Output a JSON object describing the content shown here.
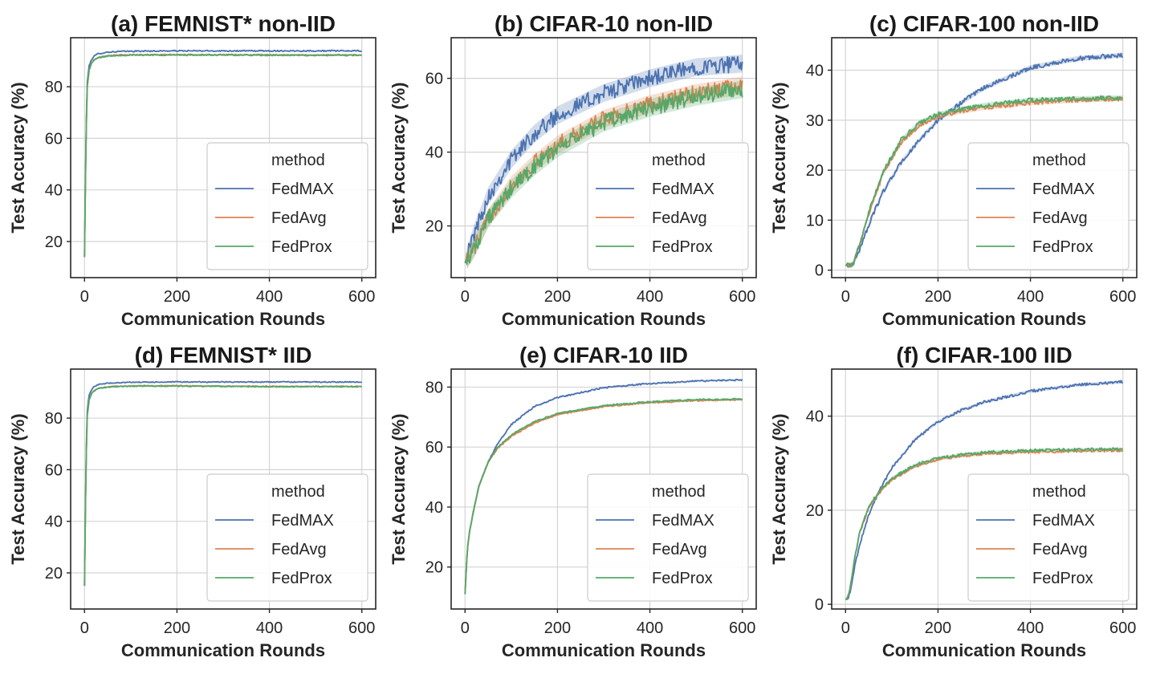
{
  "figure": {
    "colors": {
      "FedMAX": "#4c72b0",
      "FedAvg": "#dd8452",
      "FedProx": "#55a868"
    }
  },
  "chart_data": [
    {
      "type": "line",
      "title": "(a) FEMNIST* non-IID",
      "xlabel": "Communication Rounds",
      "ylabel": "Test Accuracy (%)",
      "xlim": [
        -30,
        630
      ],
      "ylim": [
        6,
        99
      ],
      "xticks": [
        0,
        200,
        400,
        600
      ],
      "yticks": [
        20,
        40,
        60,
        80
      ],
      "legend": {
        "title": "method",
        "placement": "bottom-right"
      },
      "noise": 0.25,
      "series": [
        {
          "name": "FedMAX",
          "x": [
            0,
            3,
            6,
            10,
            15,
            20,
            30,
            50,
            80,
            120,
            200,
            300,
            400,
            500,
            600
          ],
          "y": [
            14,
            60,
            82,
            88,
            90.5,
            91.8,
            92.8,
            93.4,
            93.7,
            93.8,
            93.9,
            93.9,
            93.9,
            93.9,
            93.9
          ]
        },
        {
          "name": "FedAvg",
          "x": [
            0,
            3,
            6,
            10,
            15,
            20,
            30,
            50,
            80,
            120,
            200,
            300,
            400,
            500,
            600
          ],
          "y": [
            14,
            58,
            80,
            86.5,
            89,
            90.3,
            91.4,
            92,
            92.3,
            92.4,
            92.4,
            92.4,
            92.3,
            92.3,
            92.3
          ]
        },
        {
          "name": "FedProx",
          "x": [
            0,
            3,
            6,
            10,
            15,
            20,
            30,
            50,
            80,
            120,
            200,
            300,
            400,
            500,
            600
          ],
          "y": [
            14,
            58,
            80,
            86.5,
            89,
            90.2,
            91.3,
            91.9,
            92.2,
            92.3,
            92.3,
            92.3,
            92.2,
            92.2,
            92.2
          ]
        }
      ]
    },
    {
      "type": "line",
      "title": "(b) CIFAR-10 non-IID",
      "xlabel": "Communication Rounds",
      "ylabel": "Test Accuracy (%)",
      "xlim": [
        -30,
        630
      ],
      "ylim": [
        6,
        71
      ],
      "xticks": [
        0,
        200,
        400,
        600
      ],
      "yticks": [
        20,
        40,
        60
      ],
      "legend": {
        "title": "method",
        "placement": "bottom-right"
      },
      "noise": 2.2,
      "series": [
        {
          "name": "FedMAX",
          "x": [
            0,
            20,
            50,
            100,
            150,
            200,
            300,
            400,
            500,
            600
          ],
          "y": [
            10,
            18,
            28,
            38,
            45,
            50,
            56,
            60,
            63,
            64
          ]
        },
        {
          "name": "FedAvg",
          "x": [
            0,
            20,
            50,
            100,
            150,
            200,
            300,
            400,
            500,
            600
          ],
          "y": [
            10,
            14,
            22,
            31,
            37,
            42,
            49,
            53,
            56,
            58
          ]
        },
        {
          "name": "FedProx",
          "x": [
            0,
            20,
            50,
            100,
            150,
            200,
            300,
            400,
            500,
            600
          ],
          "y": [
            10,
            14,
            22,
            30,
            36,
            41,
            48,
            52,
            55,
            57
          ]
        }
      ]
    },
    {
      "type": "line",
      "title": "(c) CIFAR-100 non-IID",
      "xlabel": "Communication Rounds",
      "ylabel": "Test Accuracy (%)",
      "xlim": [
        -30,
        630
      ],
      "ylim": [
        -1.5,
        46.5
      ],
      "xticks": [
        0,
        200,
        400,
        600
      ],
      "yticks": [
        0,
        10,
        20,
        30,
        40
      ],
      "legend": {
        "title": "method",
        "placement": "bottom-right"
      },
      "noise": 0.45,
      "series": [
        {
          "name": "FedMAX",
          "x": [
            0,
            15,
            30,
            50,
            80,
            120,
            160,
            200,
            250,
            300,
            400,
            500,
            600
          ],
          "y": [
            1,
            1,
            4,
            9,
            15.5,
            21.5,
            26,
            30,
            33.5,
            36.5,
            40.5,
            42.3,
            43
          ]
        },
        {
          "name": "FedAvg",
          "x": [
            0,
            15,
            30,
            50,
            80,
            120,
            160,
            200,
            250,
            300,
            400,
            500,
            600
          ],
          "y": [
            1,
            1,
            5,
            11,
            19,
            25.5,
            29,
            30.8,
            31.8,
            32.5,
            33.5,
            34,
            34.3
          ]
        },
        {
          "name": "FedProx",
          "x": [
            0,
            15,
            30,
            50,
            80,
            120,
            160,
            200,
            250,
            300,
            400,
            500,
            600
          ],
          "y": [
            1,
            1,
            5,
            11.5,
            19.5,
            26,
            29.5,
            31.2,
            32.2,
            33,
            34,
            34.3,
            34.5
          ]
        }
      ]
    },
    {
      "type": "line",
      "title": "(d) FEMNIST* IID",
      "xlabel": "Communication Rounds",
      "ylabel": "Test Accuracy (%)",
      "xlim": [
        -30,
        630
      ],
      "ylim": [
        6,
        99
      ],
      "xticks": [
        0,
        200,
        400,
        600
      ],
      "yticks": [
        20,
        40,
        60,
        80
      ],
      "legend": {
        "title": "method",
        "placement": "bottom-right"
      },
      "noise": 0.2,
      "series": [
        {
          "name": "FedMAX",
          "x": [
            0,
            3,
            6,
            10,
            15,
            20,
            30,
            50,
            80,
            120,
            200,
            300,
            400,
            500,
            600
          ],
          "y": [
            15,
            62,
            83,
            89,
            91,
            92.2,
            93,
            93.5,
            93.8,
            93.9,
            94,
            94,
            94,
            94,
            94
          ]
        },
        {
          "name": "FedAvg",
          "x": [
            0,
            3,
            6,
            10,
            15,
            20,
            30,
            50,
            80,
            120,
            200,
            300,
            400,
            500,
            600
          ],
          "y": [
            15,
            60,
            81,
            87,
            89.5,
            90.6,
            91.6,
            92.1,
            92.4,
            92.5,
            92.5,
            92.4,
            92.3,
            92.3,
            92.3
          ]
        },
        {
          "name": "FedProx",
          "x": [
            0,
            3,
            6,
            10,
            15,
            20,
            30,
            50,
            80,
            120,
            200,
            300,
            400,
            500,
            600
          ],
          "y": [
            15,
            60,
            81,
            87,
            89.4,
            90.5,
            91.5,
            92,
            92.3,
            92.4,
            92.4,
            92.3,
            92.2,
            92.2,
            92.2
          ]
        }
      ]
    },
    {
      "type": "line",
      "title": "(e) CIFAR-10 IID",
      "xlabel": "Communication Rounds",
      "ylabel": "Test Accuracy (%)",
      "xlim": [
        -30,
        630
      ],
      "ylim": [
        6,
        86
      ],
      "xticks": [
        0,
        200,
        400,
        600
      ],
      "yticks": [
        20,
        40,
        60,
        80
      ],
      "legend": {
        "title": "method",
        "placement": "bottom-right"
      },
      "noise": 0.25,
      "series": [
        {
          "name": "FedMAX",
          "x": [
            0,
            5,
            10,
            20,
            30,
            50,
            70,
            100,
            150,
            200,
            300,
            400,
            500,
            600
          ],
          "y": [
            11,
            26,
            32,
            40,
            47,
            55,
            61,
            67.5,
            73.5,
            76.5,
            79.8,
            81.2,
            82,
            82.4
          ]
        },
        {
          "name": "FedAvg",
          "x": [
            0,
            5,
            10,
            20,
            30,
            50,
            70,
            100,
            150,
            200,
            300,
            400,
            500,
            600
          ],
          "y": [
            11,
            26,
            32,
            40,
            47,
            55,
            59.5,
            63.5,
            68,
            70.8,
            73.5,
            74.8,
            75.5,
            75.8
          ]
        },
        {
          "name": "FedProx",
          "x": [
            0,
            5,
            10,
            20,
            30,
            50,
            70,
            100,
            150,
            200,
            300,
            400,
            500,
            600
          ],
          "y": [
            11,
            26,
            32,
            40,
            47,
            55,
            59.8,
            64,
            68.5,
            71.2,
            73.8,
            75.1,
            75.8,
            76
          ]
        }
      ]
    },
    {
      "type": "line",
      "title": "(f) CIFAR-100 IID",
      "xlabel": "Communication Rounds",
      "ylabel": "Test Accuracy (%)",
      "xlim": [
        -30,
        630
      ],
      "ylim": [
        -1,
        50
      ],
      "xticks": [
        0,
        200,
        400,
        600
      ],
      "yticks": [
        0,
        20,
        40
      ],
      "legend": {
        "title": "method",
        "placement": "bottom-right"
      },
      "noise": 0.3,
      "series": [
        {
          "name": "FedMAX",
          "x": [
            0,
            5,
            10,
            20,
            30,
            50,
            75,
            100,
            150,
            200,
            250,
            300,
            400,
            500,
            600
          ],
          "y": [
            1,
            1.2,
            2.5,
            8,
            12.5,
            19,
            24.5,
            29,
            35,
            38.8,
            41.2,
            43,
            45.3,
            46.6,
            47.3
          ]
        },
        {
          "name": "FedAvg",
          "x": [
            0,
            5,
            10,
            20,
            30,
            50,
            75,
            100,
            150,
            200,
            250,
            300,
            400,
            500,
            600
          ],
          "y": [
            1,
            1.5,
            3.5,
            10,
            15,
            20.5,
            24,
            26.5,
            29.3,
            30.8,
            31.5,
            32,
            32.4,
            32.6,
            32.7
          ]
        },
        {
          "name": "FedProx",
          "x": [
            0,
            5,
            10,
            20,
            30,
            50,
            75,
            100,
            150,
            200,
            250,
            300,
            400,
            500,
            600
          ],
          "y": [
            1,
            1.5,
            3.5,
            10,
            15,
            20.8,
            24.3,
            26.8,
            29.6,
            31.1,
            31.8,
            32.3,
            32.7,
            32.9,
            33
          ]
        }
      ]
    }
  ]
}
